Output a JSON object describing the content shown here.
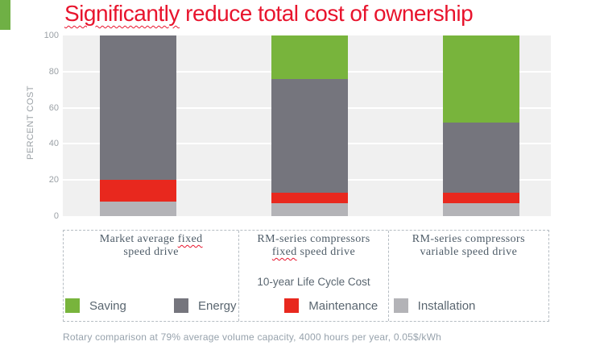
{
  "title_parts": [
    [
      "Significantly",
      true
    ],
    [
      " reduce total cost of ownership",
      false
    ]
  ],
  "chart_data": {
    "type": "bar",
    "subtype": "stacked-vertical",
    "title": "Significantly reduce total cost of ownership",
    "xlabel": "",
    "ylabel": "PERCENT COST",
    "ylim": [
      0,
      100
    ],
    "yticks": [
      0,
      20,
      40,
      60,
      80,
      100
    ],
    "grid": "horizontal white gridlines every 20, plot background light gray",
    "categories": [
      "Market average fixed speed drive",
      "RM-series compressors fixed speed drive",
      "RM-series compressors variable speed drive"
    ],
    "series": [
      {
        "name": "Installation",
        "color": "#b3b3b7",
        "values": [
          8,
          7,
          7
        ]
      },
      {
        "name": "Maintenance",
        "color": "#e8281e",
        "values": [
          12,
          6,
          6
        ]
      },
      {
        "name": "Energy",
        "color": "#75757d",
        "values": [
          80,
          63,
          39
        ]
      },
      {
        "name": "Saving",
        "color": "#78b43c",
        "values": [
          0,
          24,
          48
        ]
      }
    ],
    "legend": [
      {
        "label": "Saving",
        "color": "#78b43c"
      },
      {
        "label": "Energy",
        "color": "#75757d"
      },
      {
        "label": "Maintenance",
        "color": "#e8281e"
      },
      {
        "label": "Installation",
        "color": "#b3b3b7"
      }
    ],
    "legend_note": "10-year Life Cycle Cost",
    "legend_position": "bottom inside dashed box"
  },
  "categories_rich": [
    {
      "lines": [
        [
          [
            "Market average ",
            false
          ],
          [
            "fixed",
            true
          ]
        ],
        [
          [
            "speed drive",
            false
          ]
        ]
      ]
    },
    {
      "lines": [
        [
          [
            "RM-series compressors",
            false
          ]
        ],
        [
          [
            "fixed",
            true
          ],
          [
            " speed drive",
            false
          ]
        ]
      ]
    },
    {
      "lines": [
        [
          [
            "RM-series compressors",
            false
          ]
        ],
        [
          [
            "variable speed drive",
            false
          ]
        ]
      ]
    }
  ],
  "footnote": "Rotary comparison at 79% average volume capacity, 4000 hours per year, 0.05$/kWh",
  "theme": {
    "title_red": "#e8142d",
    "corner_green": "#6fb045",
    "plot_bg": "#f0f0f0",
    "dashed_border": "#b6bdc3",
    "category_text": "#4e5c68",
    "note_text": "#5a6670",
    "tick_text": "#9ba1a6",
    "footnote_text": "#97a2ac"
  }
}
